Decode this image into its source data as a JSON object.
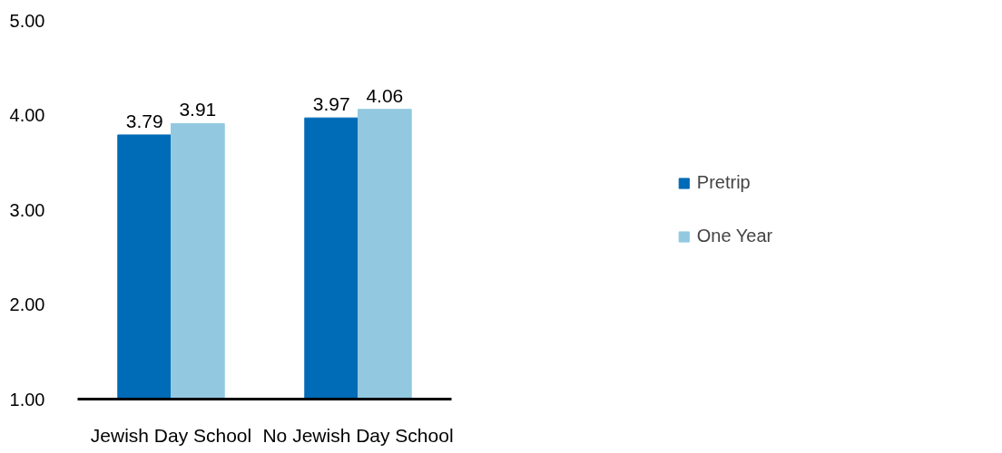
{
  "chart_data": {
    "type": "bar",
    "categories": [
      "Jewish Day School",
      "No Jewish Day School"
    ],
    "series": [
      {
        "name": "Pretrip",
        "color": "#006bb6",
        "values": [
          3.79,
          3.97
        ]
      },
      {
        "name": "One Year",
        "color": "#92c9e0",
        "values": [
          3.91,
          4.06
        ]
      }
    ],
    "ylim": [
      1,
      5
    ],
    "yticks": [
      {
        "value": 1,
        "label": "1.00"
      },
      {
        "value": 2,
        "label": "2.00"
      },
      {
        "value": 3,
        "label": "3.00"
      },
      {
        "value": 4,
        "label": "4.00"
      },
      {
        "value": 5,
        "label": "5.00"
      }
    ],
    "data_labels": true,
    "grid": false,
    "legend": "right"
  }
}
